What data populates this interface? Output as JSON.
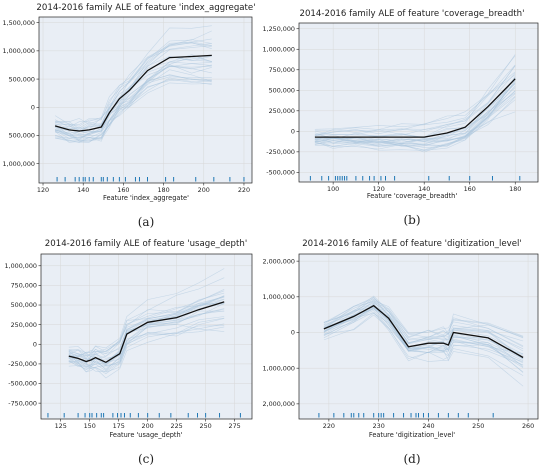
{
  "chart_data": [
    {
      "type": "line",
      "title": "2014-2016 family ALE of feature 'index_aggregate'",
      "xlabel": "Feature 'index_aggregate'",
      "caption": "(a)",
      "xlim": [
        118,
        224
      ],
      "ylim": [
        -1200000,
        1600000
      ],
      "xticks": [
        120,
        140,
        160,
        180,
        200,
        220
      ],
      "yticks": [
        -1000000,
        -500000,
        0,
        500000,
        1000000,
        1500000
      ],
      "ytick_labels": [
        "1,000,000",
        "500,000",
        "0",
        "500,000",
        "1,000,000",
        "1,500,000"
      ],
      "x": [
        126,
        133,
        138,
        143,
        149,
        153,
        158,
        163,
        172,
        183,
        194,
        204
      ],
      "y": [
        -330000,
        -400000,
        -420000,
        -400000,
        -350000,
        -100000,
        150000,
        300000,
        650000,
        880000,
        900000,
        920000
      ],
      "rug": [
        127,
        131,
        136,
        138,
        140,
        141,
        143,
        145,
        149,
        150,
        152,
        155,
        158,
        161,
        166,
        168,
        172,
        181,
        185,
        196,
        205,
        213,
        220
      ],
      "grid": true
    },
    {
      "type": "line",
      "title": "2014-2016 family ALE of feature 'coverage_breadth'",
      "xlabel": "Feature 'coverage_breadth'",
      "caption": "(b)",
      "xlim": [
        85,
        190
      ],
      "ylim": [
        -520000,
        1320000
      ],
      "xticks": [
        100,
        120,
        140,
        160,
        180
      ],
      "yticks": [
        -500000,
        -250000,
        0,
        250000,
        500000,
        750000,
        1000000,
        1250000
      ],
      "ytick_labels": [
        "-500,000",
        "-250,000",
        "0",
        "250,000",
        "500,000",
        "750,000",
        "1,000,000",
        "1,250,000"
      ],
      "x": [
        92,
        100,
        110,
        120,
        130,
        140,
        150,
        158,
        168,
        180
      ],
      "y": [
        -70000,
        -70000,
        -70000,
        -70000,
        -70000,
        -70000,
        -20000,
        50000,
        300000,
        640000
      ],
      "rug": [
        90,
        95,
        98,
        101,
        102,
        103,
        104,
        105,
        106,
        110,
        113,
        116,
        118,
        121,
        123,
        127,
        142,
        151,
        160,
        170,
        182
      ],
      "grid": true
    },
    {
      "type": "line",
      "title": "2014-2016 family ALE of feature 'usage_depth'",
      "xlabel": "Feature 'usage_depth'",
      "caption": "(c)",
      "xlim": [
        108,
        290
      ],
      "ylim": [
        -850000,
        1150000
      ],
      "xticks": [
        125,
        150,
        175,
        200,
        225,
        250,
        275
      ],
      "yticks": [
        -750000,
        -500000,
        -250000,
        0,
        250000,
        500000,
        750000,
        1000000
      ],
      "ytick_labels": [
        "-750,000",
        "-500,000",
        "-250,000",
        "0",
        "250,000",
        "500,000",
        "750,000",
        "1,000,000"
      ],
      "x": [
        132,
        140,
        147,
        151,
        155,
        164,
        176,
        182,
        200,
        225,
        244,
        266
      ],
      "y": [
        -150000,
        -180000,
        -220000,
        -200000,
        -170000,
        -230000,
        -120000,
        130000,
        280000,
        340000,
        440000,
        540000
      ],
      "rug": [
        114,
        128,
        140,
        146,
        150,
        152,
        156,
        160,
        162,
        170,
        174,
        177,
        180,
        185,
        192,
        200,
        210,
        220,
        235,
        243,
        250,
        262,
        280
      ],
      "grid": true
    },
    {
      "type": "line",
      "title": "2014-2016 family ALE of feature 'digitization_level'",
      "xlabel": "Feature 'digitization_level'",
      "caption": "(d)",
      "xlim": [
        214,
        262
      ],
      "ylim": [
        -2200000,
        2200000
      ],
      "xticks": [
        220,
        230,
        240,
        250,
        260
      ],
      "yticks": [
        -2000000,
        -1000000,
        0,
        1000000,
        2000000
      ],
      "ytick_labels": [
        "2,000,000",
        "1,000,000",
        "0",
        "1,000,000",
        "2,000,000"
      ],
      "x": [
        219,
        225,
        229,
        232,
        236,
        240,
        243,
        244,
        245,
        252,
        259
      ],
      "y": [
        100000,
        450000,
        750000,
        400000,
        -400000,
        -300000,
        -300000,
        -350000,
        0,
        -150000,
        -700000
      ],
      "rug": [
        218,
        221,
        223,
        224.5,
        225,
        226,
        227,
        229,
        230,
        230.5,
        231,
        233,
        235,
        236.5,
        237.5,
        238,
        239,
        240,
        242,
        244,
        246,
        248,
        253
      ],
      "grid": true
    }
  ]
}
